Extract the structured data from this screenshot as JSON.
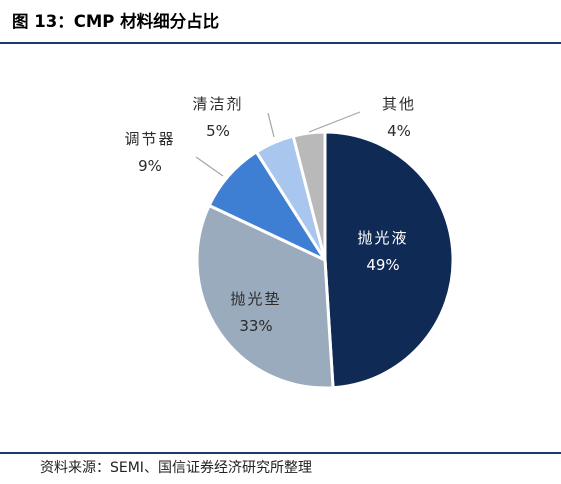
{
  "figure": {
    "title": "图 13：CMP 材料细分占比",
    "source": "资料来源：SEMI、国信证券经济研究所整理"
  },
  "colors": {
    "rule": "#1a3a6b",
    "slices": [
      "#0f2a55",
      "#9aabbd",
      "#3f7fd3",
      "#a9c7ee",
      "#b9b9b9"
    ]
  },
  "chart_data": {
    "type": "pie",
    "title": "",
    "start_angle_deg": 0,
    "direction": "clockwise",
    "slices": [
      {
        "label": "抛光液",
        "value": 49,
        "value_label": "49%"
      },
      {
        "label": "抛光垫",
        "value": 33,
        "value_label": "33%"
      },
      {
        "label": "调节器",
        "value": 9,
        "value_label": "9%"
      },
      {
        "label": "清洁剂",
        "value": 5,
        "value_label": "5%"
      },
      {
        "label": "其他",
        "value": 4,
        "value_label": "4%"
      }
    ]
  }
}
